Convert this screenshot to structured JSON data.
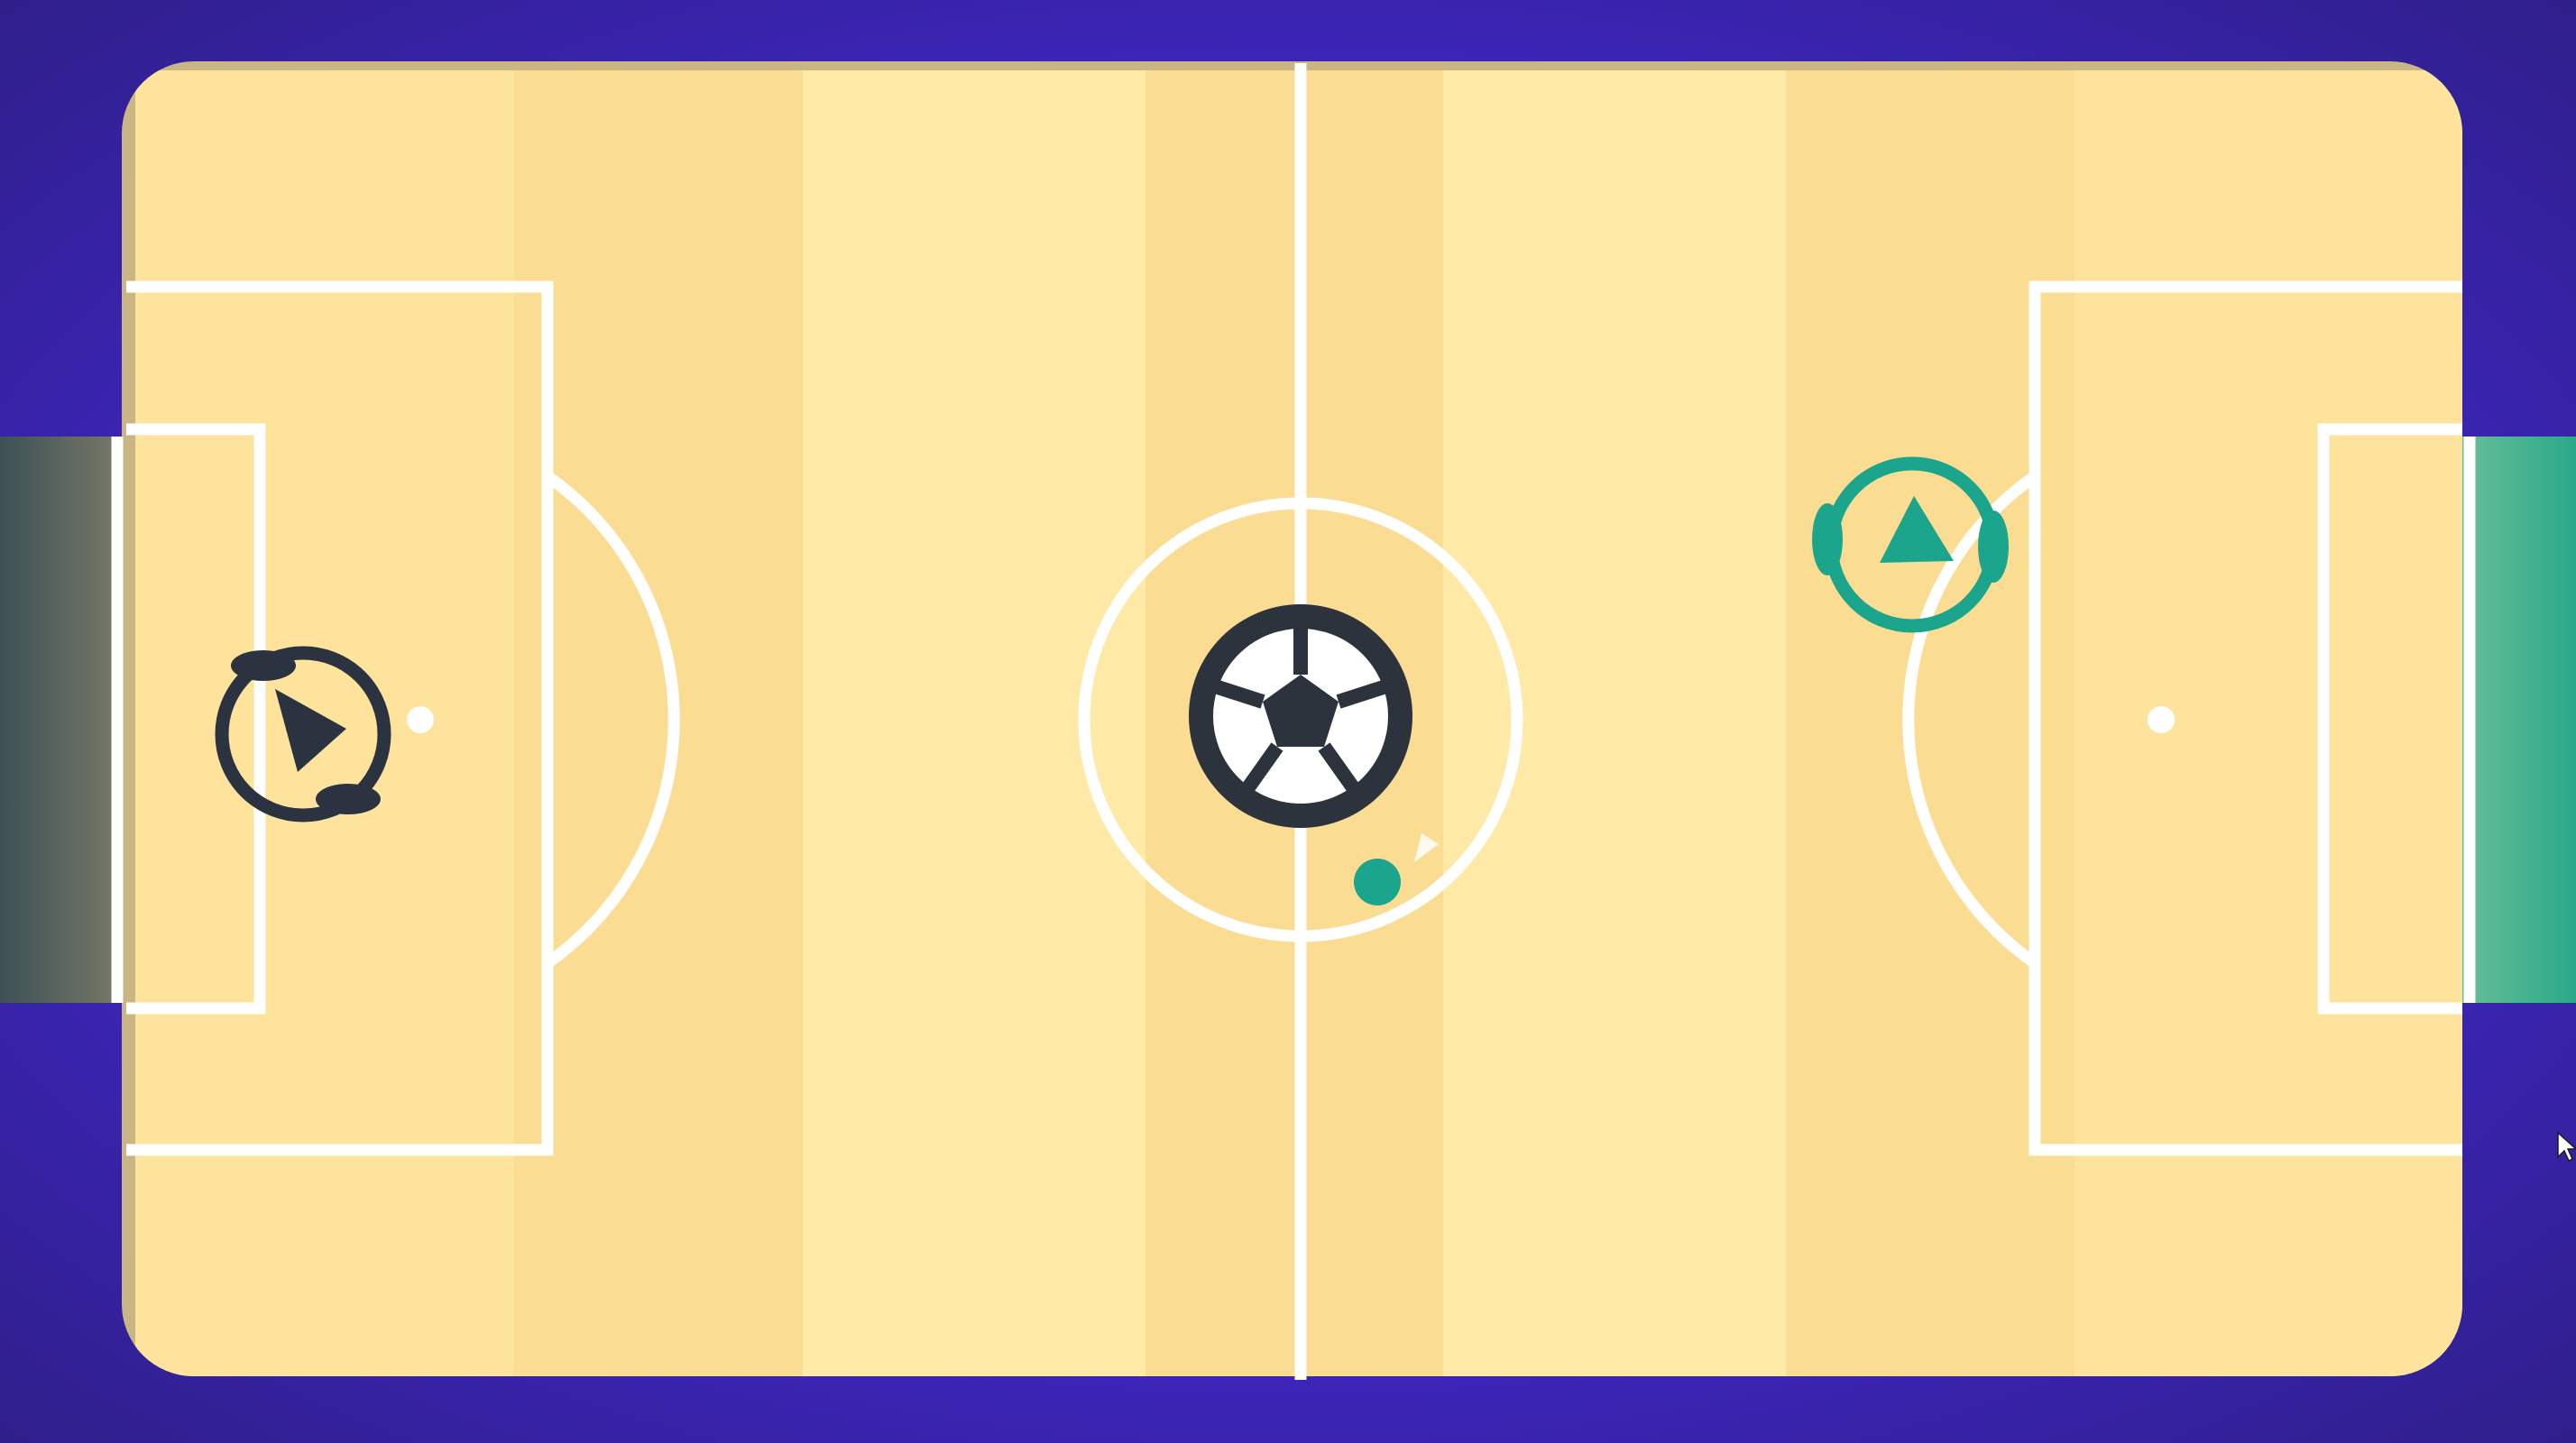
{
  "game": {
    "sport": "soccer",
    "view": "top-down"
  },
  "colors": {
    "background": "#3f26c4",
    "pitch_light": "#fee9a6",
    "pitch_dark": "#fbdc93",
    "lines": "#ffffff",
    "team_left": "#2b3340",
    "team_right": "#1aa58c",
    "goal_left": "#4a5a5a",
    "goal_right": "#2fb38f",
    "ball_black": "#2d333d",
    "ball_white": "#ffffff"
  },
  "entities": {
    "player_left": {
      "team": "dark",
      "icon": "arrow-right-icon"
    },
    "player_right": {
      "team": "teal",
      "icon": "arrow-up-icon"
    },
    "ball": {
      "icon": "soccer-ball-icon"
    },
    "teammate_marker": {
      "team": "teal"
    }
  },
  "cursor": {
    "icon": "mouse-pointer-icon"
  }
}
